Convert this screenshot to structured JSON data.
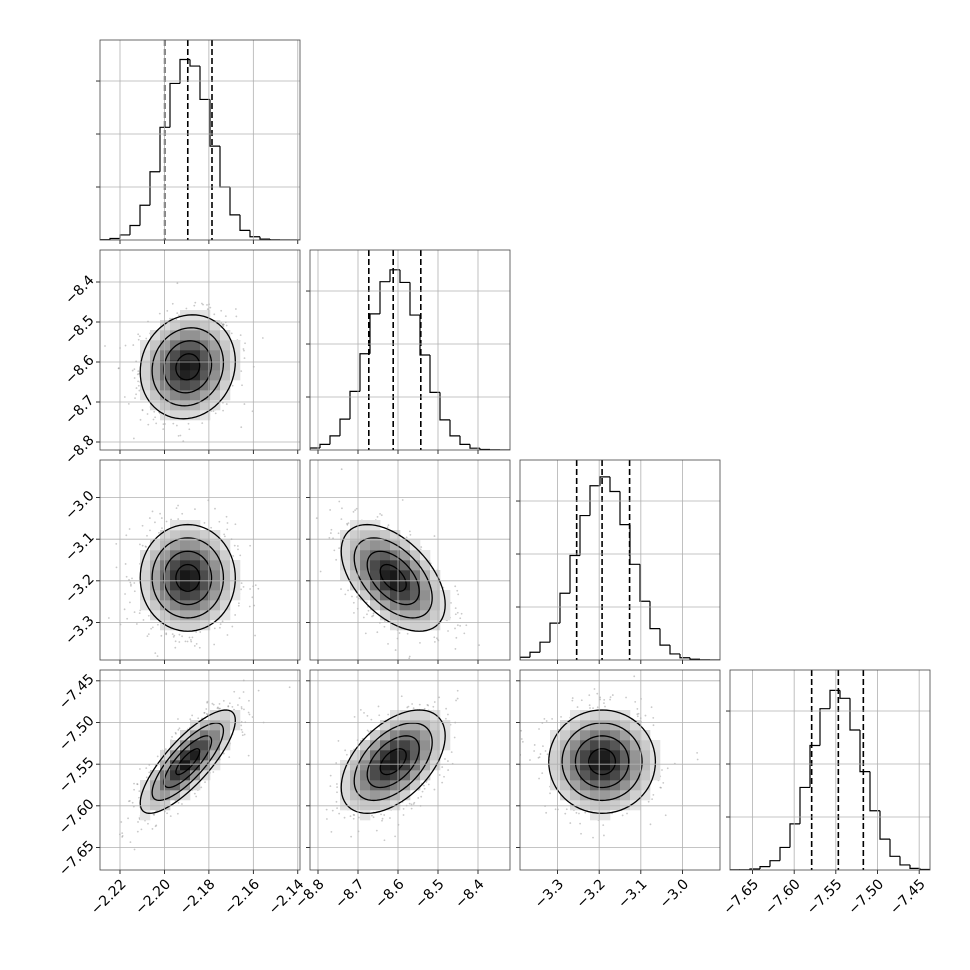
{
  "chart_data": {
    "type": "corner",
    "params": [
      {
        "lim": [
          -2.229,
          -2.139
        ],
        "mean": -2.1895,
        "std": 0.0107,
        "ticks": [
          {
            "value": -2.22,
            "label": "−2.22"
          },
          {
            "value": -2.2,
            "label": "−2.20"
          },
          {
            "value": -2.18,
            "label": "−2.18"
          },
          {
            "value": -2.16,
            "label": "−2.16"
          },
          {
            "value": -2.14,
            "label": "−2.14"
          }
        ]
      },
      {
        "lim": [
          -8.82,
          -8.32
        ],
        "mean": -8.612,
        "std": 0.065,
        "ticks": [
          {
            "value": -8.8,
            "label": "−8.8"
          },
          {
            "value": -8.7,
            "label": "−8.7"
          },
          {
            "value": -8.6,
            "label": "−8.6"
          },
          {
            "value": -8.5,
            "label": "−8.5"
          },
          {
            "value": -8.4,
            "label": "−8.4"
          }
        ]
      },
      {
        "lim": [
          -3.39,
          -2.91
        ],
        "mean": -3.193,
        "std": 0.064,
        "ticks": [
          {
            "value": -3.3,
            "label": "−3.3"
          },
          {
            "value": -3.2,
            "label": "−3.2"
          },
          {
            "value": -3.1,
            "label": "−3.1"
          },
          {
            "value": -3.0,
            "label": "−3.0"
          }
        ]
      },
      {
        "lim": [
          -7.677,
          -7.437
        ],
        "mean": -7.547,
        "std": 0.031,
        "ticks": [
          {
            "value": -7.65,
            "label": "−7.65"
          },
          {
            "value": -7.6,
            "label": "−7.60"
          },
          {
            "value": -7.55,
            "label": "−7.55"
          },
          {
            "value": -7.5,
            "label": "−7.50"
          },
          {
            "value": -7.45,
            "label": "−7.45"
          }
        ]
      }
    ],
    "hist": [
      {
        "bins": [
          -2.229,
          -2.2245,
          -2.22,
          -2.2155,
          -2.211,
          -2.2065,
          -2.202,
          -2.1975,
          -2.193,
          -2.1885,
          -2.184,
          -2.1795,
          -2.175,
          -2.1705,
          -2.166,
          -2.1615,
          -2.157,
          -2.1525,
          -2.148,
          -2.1435,
          -2.139
        ],
        "counts": [
          3,
          14,
          48,
          137,
          328,
          644,
          1063,
          1477,
          1703,
          1641,
          1326,
          886,
          500,
          237,
          91,
          31,
          9,
          2,
          0,
          0
        ],
        "quantiles": [
          -2.1999,
          -2.1895,
          -2.1786
        ]
      },
      {
        "bins": [
          -8.82,
          -8.795,
          -8.77,
          -8.745,
          -8.72,
          -8.695,
          -8.67,
          -8.645,
          -8.62,
          -8.595,
          -8.57,
          -8.545,
          -8.52,
          -8.495,
          -8.47,
          -8.445,
          -8.42,
          -8.395,
          -8.37,
          -8.345,
          -8.32
        ],
        "counts": [
          19,
          53,
          133,
          291,
          553,
          908,
          1284,
          1588,
          1700,
          1581,
          1273,
          896,
          544,
          284,
          133,
          53,
          17,
          5,
          2,
          0
        ],
        "quantiles": [
          -8.673,
          -8.612,
          -8.543
        ]
      },
      {
        "bins": [
          -3.39,
          -3.366,
          -3.342,
          -3.318,
          -3.294,
          -3.27,
          -3.246,
          -3.222,
          -3.198,
          -3.174,
          -3.15,
          -3.126,
          -3.102,
          -3.078,
          -3.054,
          -3.03,
          -3.006,
          -2.982,
          -2.958,
          -2.934,
          -2.91
        ],
        "counts": [
          26,
          73,
          168,
          348,
          630,
          986,
          1363,
          1644,
          1728,
          1590,
          1277,
          903,
          554,
          296,
          140,
          57,
          21,
          7,
          2,
          0
        ],
        "quantiles": [
          -3.254,
          -3.193,
          -3.127
        ]
      },
      {
        "bins": [
          -7.677,
          -7.665,
          -7.653,
          -7.641,
          -7.629,
          -7.617,
          -7.605,
          -7.593,
          -7.581,
          -7.569,
          -7.557,
          -7.545,
          -7.533,
          -7.521,
          -7.509,
          -7.497,
          -7.485,
          -7.473,
          -7.461,
          -7.449,
          -7.437
        ],
        "counts": [
          1,
          2,
          10,
          32,
          88,
          213,
          435,
          779,
          1175,
          1522,
          1695,
          1620,
          1321,
          928,
          559,
          291,
          129,
          48,
          15,
          5
        ],
        "quantiles": [
          -7.579,
          -7.547,
          -7.517
        ]
      }
    ],
    "hist_ylim": [
      0,
      1887
    ],
    "hist_yticks": [
      500,
      1000,
      1500
    ],
    "pairs": [
      {
        "x": 0,
        "y": 1,
        "corr": 0.1
      },
      {
        "x": 0,
        "y": 2,
        "corr": 0.0
      },
      {
        "x": 1,
        "y": 2,
        "corr": -0.5
      },
      {
        "x": 0,
        "y": 3,
        "corr": 0.8
      },
      {
        "x": 1,
        "y": 3,
        "corr": 0.5
      },
      {
        "x": 2,
        "y": 3,
        "corr": 0.0
      }
    ],
    "levels": [
      0.5,
      1,
      1.5,
      2
    ],
    "grid": true,
    "color": "#000000"
  }
}
